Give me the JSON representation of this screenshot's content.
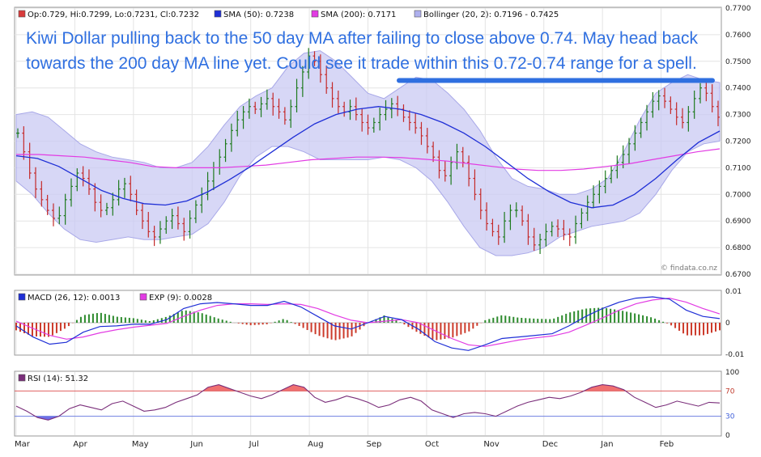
{
  "chart_data": [
    {
      "type": "line",
      "panel": "price",
      "legend": [
        {
          "label": "Op:0.729, Hi:0.7299, Lo:0.7231, Cl:0.7232",
          "color": "#d83b3b"
        },
        {
          "label": "SMA (50): 0.7238",
          "color": "#1f2fd6"
        },
        {
          "label": "SMA (200): 0.7171",
          "color": "#e23be3"
        },
        {
          "label": "Bollinger (20, 2): 0.7196 - 0.7425",
          "color": "#aeb0ee"
        }
      ],
      "ylim": [
        0.67,
        0.77
      ],
      "y_ticks": [
        "0.7700",
        "0.7600",
        "0.7500",
        "0.7400",
        "0.7300",
        "0.7200",
        "0.7100",
        "0.7000",
        "0.6900",
        "0.6800",
        "0.6700"
      ],
      "annotation": "Kiwi Dollar pulling back to the 50 day MA after failing to close above 0.74. May head back towards the 200 day MA line yet. Could see it trade within this 0.72-0.74 range for a spell.",
      "resistance_level": 0.7428,
      "watermark": "© findata.co.nz",
      "series": [
        {
          "name": "Close",
          "kind": "ohlc",
          "values": [
            0.723,
            0.716,
            0.708,
            0.702,
            0.698,
            0.694,
            0.691,
            0.692,
            0.698,
            0.703,
            0.708,
            0.706,
            0.702,
            0.697,
            0.694,
            0.695,
            0.698,
            0.702,
            0.704,
            0.7,
            0.694,
            0.69,
            0.686,
            0.684,
            0.687,
            0.69,
            0.692,
            0.689,
            0.686,
            0.691,
            0.696,
            0.7,
            0.705,
            0.71,
            0.714,
            0.719,
            0.724,
            0.728,
            0.731,
            0.733,
            0.732,
            0.734,
            0.736,
            0.733,
            0.731,
            0.728,
            0.733,
            0.74,
            0.746,
            0.752,
            0.75,
            0.745,
            0.74,
            0.736,
            0.733,
            0.731,
            0.733,
            0.73,
            0.727,
            0.725,
            0.727,
            0.73,
            0.732,
            0.734,
            0.732,
            0.729,
            0.727,
            0.725,
            0.722,
            0.718,
            0.714,
            0.709,
            0.707,
            0.712,
            0.716,
            0.712,
            0.706,
            0.7,
            0.694,
            0.689,
            0.686,
            0.684,
            0.69,
            0.694,
            0.694,
            0.69,
            0.684,
            0.681,
            0.683,
            0.686,
            0.688,
            0.687,
            0.685,
            0.684,
            0.689,
            0.693,
            0.697,
            0.7,
            0.703,
            0.706,
            0.709,
            0.712,
            0.715,
            0.719,
            0.723,
            0.727,
            0.731,
            0.735,
            0.737,
            0.735,
            0.732,
            0.729,
            0.727,
            0.731,
            0.736,
            0.74,
            0.738,
            0.733,
            0.729
          ]
        },
        {
          "name": "SMA (50)",
          "values": [
            0.7145,
            0.7135,
            0.7105,
            0.706,
            0.7015,
            0.6985,
            0.6965,
            0.696,
            0.6975,
            0.701,
            0.7055,
            0.7105,
            0.716,
            0.7215,
            0.7265,
            0.73,
            0.732,
            0.733,
            0.732,
            0.73,
            0.727,
            0.723,
            0.718,
            0.712,
            0.706,
            0.701,
            0.697,
            0.695,
            0.696,
            0.7,
            0.706,
            0.713,
            0.7195,
            0.7238
          ]
        },
        {
          "name": "SMA (200)",
          "values": [
            0.715,
            0.715,
            0.7145,
            0.714,
            0.713,
            0.712,
            0.7105,
            0.71,
            0.71,
            0.71,
            0.7105,
            0.711,
            0.712,
            0.713,
            0.7135,
            0.714,
            0.714,
            0.7138,
            0.7132,
            0.7125,
            0.7115,
            0.7105,
            0.7095,
            0.709,
            0.709,
            0.7095,
            0.7105,
            0.7115,
            0.713,
            0.7145,
            0.716,
            0.7171
          ]
        },
        {
          "name": "Bollinger (20, 2)",
          "upper": [
            0.73,
            0.731,
            0.729,
            0.724,
            0.719,
            0.716,
            0.714,
            0.713,
            0.712,
            0.71,
            0.71,
            0.712,
            0.718,
            0.726,
            0.733,
            0.737,
            0.74,
            0.748,
            0.753,
            0.754,
            0.75,
            0.744,
            0.738,
            0.736,
            0.74,
            0.744,
            0.743,
            0.738,
            0.732,
            0.724,
            0.714,
            0.706,
            0.703,
            0.702,
            0.7,
            0.7,
            0.702,
            0.706,
            0.716,
            0.728,
            0.738,
            0.742,
            0.745,
            0.743,
            0.742
          ],
          "lower": [
            0.705,
            0.7,
            0.693,
            0.687,
            0.683,
            0.682,
            0.683,
            0.684,
            0.683,
            0.683,
            0.684,
            0.685,
            0.689,
            0.697,
            0.707,
            0.714,
            0.718,
            0.718,
            0.716,
            0.713,
            0.713,
            0.713,
            0.713,
            0.714,
            0.713,
            0.71,
            0.705,
            0.697,
            0.688,
            0.68,
            0.677,
            0.677,
            0.678,
            0.68,
            0.684,
            0.686,
            0.688,
            0.689,
            0.69,
            0.693,
            0.7,
            0.709,
            0.716,
            0.719,
            0.72
          ]
        }
      ]
    },
    {
      "type": "line",
      "panel": "macd",
      "legend": [
        {
          "label": "MACD (26, 12): 0.0013",
          "color": "#1f2fd6"
        },
        {
          "label": "EXP (9): 0.0028",
          "color": "#e23be3"
        }
      ],
      "ylim": [
        -0.01,
        0.01
      ],
      "y_ticks": [
        "0.01",
        "0",
        "-0.01"
      ],
      "series": [
        {
          "name": "MACD (26, 12)",
          "values": [
            -0.001,
            -0.0045,
            -0.0068,
            -0.0062,
            -0.003,
            -0.0012,
            -0.001,
            -0.0005,
            -0.0005,
            0.001,
            0.0045,
            0.006,
            0.0064,
            0.006,
            0.0055,
            0.0055,
            0.0068,
            0.005,
            0.002,
            -0.001,
            -0.002,
            0.0,
            0.002,
            0.001,
            -0.002,
            -0.006,
            -0.008,
            -0.0088,
            -0.007,
            -0.005,
            -0.0045,
            -0.004,
            -0.0035,
            -0.001,
            0.002,
            0.0045,
            0.0065,
            0.0078,
            0.0082,
            0.0075,
            0.004,
            0.002,
            0.0013
          ]
        },
        {
          "name": "EXP (9)",
          "values": [
            0.0005,
            -0.0018,
            -0.004,
            -0.0052,
            -0.0045,
            -0.0032,
            -0.0022,
            -0.0014,
            -0.0008,
            -0.0002,
            0.002,
            0.004,
            0.0055,
            0.006,
            0.006,
            0.0058,
            0.006,
            0.0058,
            0.0045,
            0.0025,
            0.0008,
            0.0,
            0.0005,
            0.001,
            0.0,
            -0.0025,
            -0.005,
            -0.007,
            -0.0075,
            -0.0065,
            -0.0055,
            -0.0048,
            -0.0042,
            -0.003,
            -0.0008,
            0.0015,
            0.004,
            0.006,
            0.0072,
            0.0078,
            0.0065,
            0.0045,
            0.0028
          ]
        }
      ]
    },
    {
      "type": "area",
      "panel": "rsi",
      "legend": [
        {
          "label": "RSI (14): 51.32",
          "color": "#7a2e7a"
        }
      ],
      "ylim": [
        0,
        100
      ],
      "y_ticks": [
        "100",
        "70",
        "30",
        "0"
      ],
      "thresholds": [
        70,
        30
      ],
      "x_ticks": [
        "Mar",
        "Apr",
        "May",
        "Jun",
        "Jul",
        "Aug",
        "Sep",
        "Oct",
        "Nov",
        "Dec",
        "Jan",
        "Feb"
      ],
      "series": [
        {
          "name": "RSI (14)",
          "values": [
            46,
            38,
            28,
            24,
            30,
            42,
            48,
            44,
            40,
            50,
            54,
            46,
            38,
            40,
            44,
            52,
            58,
            64,
            76,
            80,
            74,
            68,
            62,
            58,
            64,
            72,
            80,
            76,
            60,
            52,
            56,
            62,
            58,
            52,
            44,
            48,
            56,
            60,
            54,
            40,
            34,
            28,
            34,
            36,
            34,
            30,
            38,
            46,
            52,
            56,
            60,
            58,
            62,
            68,
            76,
            80,
            78,
            72,
            60,
            52,
            44,
            48,
            54,
            50,
            46,
            52,
            51
          ]
        }
      ]
    }
  ]
}
